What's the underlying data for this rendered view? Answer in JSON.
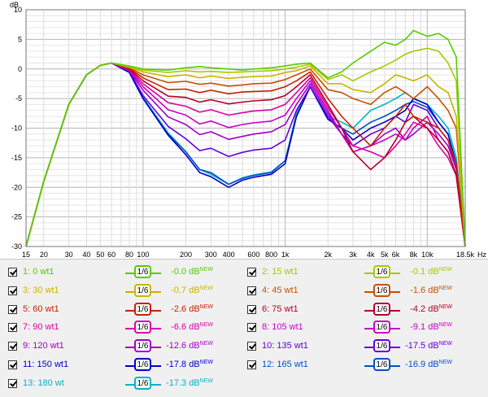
{
  "chart_data": {
    "type": "line",
    "unit_label": "dB",
    "freq_unit": "Hz",
    "xscale": "log",
    "xlim": [
      15,
      18500
    ],
    "ylim": [
      -30,
      10
    ],
    "grid": true,
    "xtick_labels": [
      {
        "v": 15,
        "t": "15"
      },
      {
        "v": 20,
        "t": "20"
      },
      {
        "v": 30,
        "t": "30"
      },
      {
        "v": 40,
        "t": "40"
      },
      {
        "v": 50,
        "t": "50"
      },
      {
        "v": 60,
        "t": "60"
      },
      {
        "v": 80,
        "t": "80"
      },
      {
        "v": 100,
        "t": "100"
      },
      {
        "v": 200,
        "t": "200"
      },
      {
        "v": 300,
        "t": "300"
      },
      {
        "v": 400,
        "t": "400"
      },
      {
        "v": 600,
        "t": "600"
      },
      {
        "v": 800,
        "t": "800"
      },
      {
        "v": 1000,
        "t": "1k"
      },
      {
        "v": 2000,
        "t": "2k"
      },
      {
        "v": 3000,
        "t": "3k"
      },
      {
        "v": 4000,
        "t": "4k"
      },
      {
        "v": 5000,
        "t": "5k"
      },
      {
        "v": 6000,
        "t": "6k"
      },
      {
        "v": 8000,
        "t": "8k"
      },
      {
        "v": 10000,
        "t": "10k"
      },
      {
        "v": 18500,
        "t": "18.5k"
      }
    ],
    "ytick_labels": [
      "10",
      "5",
      "0",
      "-5",
      "-10",
      "-15",
      "-20",
      "-25",
      "-30"
    ],
    "x": [
      15,
      20,
      30,
      40,
      50,
      60,
      80,
      100,
      150,
      200,
      250,
      300,
      400,
      500,
      600,
      800,
      1000,
      1200,
      1500,
      2000,
      2500,
      3000,
      4000,
      5000,
      6000,
      7000,
      8000,
      10000,
      12000,
      14000,
      16000,
      18500
    ],
    "series": [
      {
        "name": "1: 0 wt1",
        "color": "#55cc00",
        "values": [
          -30,
          -19,
          -6,
          -1,
          0.6,
          1.0,
          0.5,
          0,
          -0.2,
          0.2,
          0.4,
          0.2,
          0,
          -0.2,
          0,
          0.2,
          0.5,
          0.8,
          1.0,
          -1.5,
          -0.5,
          1.0,
          3.0,
          4.5,
          4.0,
          5.0,
          6.5,
          5.5,
          6.0,
          5.0,
          2.0,
          -30
        ]
      },
      {
        "name": "2: 15 wt1",
        "color": "#a8c800",
        "values": [
          -30,
          -19,
          -6,
          -1,
          0.6,
          1.0,
          0.4,
          -0.2,
          -0.6,
          -0.3,
          -0.5,
          -0.4,
          -0.6,
          -0.5,
          -0.4,
          -0.3,
          0,
          0.3,
          0.8,
          -1.8,
          -1.0,
          -2.0,
          -0.5,
          0.5,
          1.5,
          2.5,
          3.0,
          3.5,
          3.0,
          1.0,
          -2.0,
          -30
        ]
      },
      {
        "name": "3: 30 wt1",
        "color": "#c8b400",
        "values": [
          -30,
          -19,
          -6,
          -1,
          0.6,
          1.0,
          0.3,
          -0.5,
          -1.3,
          -1.0,
          -1.5,
          -1.2,
          -1.6,
          -1.4,
          -1.3,
          -1.2,
          -0.6,
          -0.3,
          0.5,
          -2.5,
          -2.5,
          -3.5,
          -4.0,
          -2.5,
          -1.0,
          -1.5,
          -2.0,
          -1.0,
          -3.0,
          -4.0,
          -8.0,
          -30
        ]
      },
      {
        "name": "4: 45 wt1",
        "color": "#c85000",
        "values": [
          -30,
          -19,
          -6,
          -1,
          0.6,
          1.0,
          0.2,
          -1.0,
          -2.3,
          -2.1,
          -2.6,
          -2.4,
          -2.9,
          -2.7,
          -2.5,
          -2.4,
          -1.8,
          -1.0,
          0,
          -3.5,
          -4.0,
          -5.0,
          -6.0,
          -4.0,
          -3.0,
          -4.0,
          -5.0,
          -3.0,
          -5.0,
          -7.0,
          -10.0,
          -30
        ]
      },
      {
        "name": "5: 60 wt1",
        "color": "#c82000",
        "values": [
          -30,
          -19,
          -6,
          -1,
          0.6,
          1.0,
          0.1,
          -1.5,
          -3.5,
          -3.4,
          -4.0,
          -3.6,
          -4.2,
          -3.9,
          -3.8,
          -3.7,
          -3.0,
          -2.0,
          -0.5,
          -5.0,
          -8.0,
          -10.0,
          -13.0,
          -10.0,
          -8.0,
          -6.0,
          -8.0,
          -9.0,
          -10.0,
          -12.0,
          -16.0,
          -30
        ]
      },
      {
        "name": "6: 75 wt1",
        "color": "#b40028",
        "values": [
          -30,
          -19,
          -6,
          -1,
          0.6,
          1.0,
          0,
          -2.0,
          -4.6,
          -4.8,
          -5.6,
          -5.2,
          -5.9,
          -5.6,
          -5.4,
          -5.2,
          -4.5,
          -3.0,
          -1.0,
          -6.0,
          -10.0,
          -14.0,
          -17.0,
          -15.0,
          -12.0,
          -9.0,
          -8.0,
          -10.0,
          -12.0,
          -14.0,
          -18.0,
          -30
        ]
      },
      {
        "name": "7: 90 wt1",
        "color": "#dc00a0",
        "values": [
          -30,
          -19,
          -6,
          -1,
          0.6,
          1.0,
          -0.1,
          -2.5,
          -5.7,
          -6.3,
          -7.3,
          -6.9,
          -7.8,
          -7.4,
          -7.1,
          -6.9,
          -6.0,
          -4.0,
          -1.5,
          -6.5,
          -10.0,
          -13.0,
          -14.0,
          -15.0,
          -13.0,
          -11.0,
          -9.0,
          -10.0,
          -13.0,
          -15.0,
          -18.0,
          -30
        ]
      },
      {
        "name": "8: 105 wt1",
        "color": "#c800c8",
        "values": [
          -30,
          -19,
          -6,
          -1,
          0.6,
          1.0,
          -0.2,
          -3.0,
          -6.9,
          -7.8,
          -9.3,
          -8.8,
          -9.9,
          -9.4,
          -9.1,
          -8.8,
          -7.8,
          -5.0,
          -2.0,
          -7.0,
          -11.0,
          -14.0,
          -13.0,
          -12.0,
          -11.0,
          -12.0,
          -10.0,
          -8.0,
          -12.0,
          -14.0,
          -18.0,
          -30
        ]
      },
      {
        "name": "9: 120 wt1",
        "color": "#a000c8",
        "values": [
          -30,
          -19,
          -6,
          -1,
          0.6,
          1.0,
          -0.3,
          -3.6,
          -8.1,
          -9.4,
          -11.1,
          -10.6,
          -11.9,
          -11.4,
          -11.0,
          -10.6,
          -9.4,
          -6.0,
          -2.5,
          -7.5,
          -11.0,
          -14.0,
          -13.0,
          -11.0,
          -10.0,
          -12.0,
          -11.0,
          -9.0,
          -11.0,
          -13.0,
          -17.0,
          -30
        ]
      },
      {
        "name": "10: 135 wt1",
        "color": "#6400dc",
        "values": [
          -30,
          -19,
          -6,
          -1,
          0.6,
          1.0,
          -0.4,
          -4.5,
          -9.7,
          -11.8,
          -13.8,
          -13.4,
          -14.8,
          -14.1,
          -13.7,
          -13.4,
          -12.0,
          -7.0,
          -3.0,
          -8.0,
          -11.0,
          -13.0,
          -11.0,
          -10.0,
          -8.0,
          -9.0,
          -6.0,
          -7.0,
          -10.0,
          -12.0,
          -17.0,
          -30
        ]
      },
      {
        "name": "11: 150 wt1",
        "color": "#0000c8",
        "values": [
          -30,
          -19,
          -6,
          -1,
          0.6,
          1.0,
          -0.6,
          -5.0,
          -11.2,
          -14.5,
          -17.5,
          -18.2,
          -20.0,
          -18.8,
          -18.3,
          -17.8,
          -16.0,
          -8.0,
          -3.0,
          -8.5,
          -10.0,
          -12.0,
          -10.0,
          -9.0,
          -8.0,
          -7.0,
          -5.0,
          -6.0,
          -9.0,
          -11.0,
          -16.0,
          -30
        ]
      },
      {
        "name": "12: 165 wt1",
        "color": "#0050c8",
        "values": [
          -30,
          -19,
          -6,
          -1,
          0.6,
          1.0,
          -0.6,
          -5.0,
          -11.0,
          -14.0,
          -17.0,
          -17.5,
          -19.5,
          -18.5,
          -18.0,
          -17.5,
          -15.5,
          -8.0,
          -3.0,
          -8.5,
          -10.0,
          -11.0,
          -9.0,
          -8.0,
          -7.0,
          -6.0,
          -5.5,
          -6.5,
          -9.0,
          -11.0,
          -16.0,
          -30
        ]
      },
      {
        "name": "13: 180 wt",
        "color": "#00b4c8",
        "values": [
          -30,
          -19,
          -6,
          -1,
          0.6,
          1.0,
          -0.5,
          -4.8,
          -10.8,
          -14.0,
          -17.0,
          -17.8,
          -19.5,
          -18.4,
          -17.9,
          -17.4,
          -15.5,
          -7.5,
          -3.0,
          -8.0,
          -9.0,
          -10.0,
          -7.0,
          -6.0,
          -5.0,
          -4.0,
          -5.0,
          -6.0,
          -8.0,
          -10.0,
          -15.0,
          -30
        ]
      }
    ]
  },
  "legend": [
    {
      "label": "1: 0 wt1",
      "smooth": "1/6",
      "value": "-0.0 dB",
      "tag": "NEW",
      "color": "#55cc00"
    },
    {
      "label": "2: 15 wt1",
      "smooth": "1/6",
      "value": "-0.1 dB",
      "tag": "NEW",
      "color": "#a8c800"
    },
    {
      "label": "3: 30 wt1",
      "smooth": "1/6",
      "value": "-0.7 dB",
      "tag": "NEW",
      "color": "#c8b400"
    },
    {
      "label": "4: 45 wt1",
      "smooth": "1/6",
      "value": "-1.6 dB",
      "tag": "NEW",
      "color": "#c85000"
    },
    {
      "label": "5: 60 wt1",
      "smooth": "1/6",
      "value": "-2.6 dB",
      "tag": "NEW",
      "color": "#c82000"
    },
    {
      "label": "6: 75 wt1",
      "smooth": "1/6",
      "value": "-4.2 dB",
      "tag": "NEW",
      "color": "#b40028"
    },
    {
      "label": "7: 90 wt1",
      "smooth": "1/6",
      "value": "-6.6 dB",
      "tag": "NEW",
      "color": "#dc00a0"
    },
    {
      "label": "8: 105 wt1",
      "smooth": "1/6",
      "value": "-9.1 dB",
      "tag": "NEW",
      "color": "#c800c8"
    },
    {
      "label": "9: 120 wt1",
      "smooth": "1/6",
      "value": "-12.6 dB",
      "tag": "NEW",
      "color": "#a000c8"
    },
    {
      "label": "10: 135 wt1",
      "smooth": "1/6",
      "value": "-17.5 dB",
      "tag": "NEW",
      "color": "#6400dc"
    },
    {
      "label": "11: 150 wt1",
      "smooth": "1/6",
      "value": "-17.8 dB",
      "tag": "NEW",
      "color": "#0000c8"
    },
    {
      "label": "12: 165 wt1",
      "smooth": "1/6",
      "value": "-16.9 dB",
      "tag": "NEW",
      "color": "#0050c8"
    },
    {
      "label": "13: 180 wt",
      "smooth": "1/6",
      "value": "-17.3 dB",
      "tag": "NEW",
      "color": "#00b4c8"
    }
  ]
}
